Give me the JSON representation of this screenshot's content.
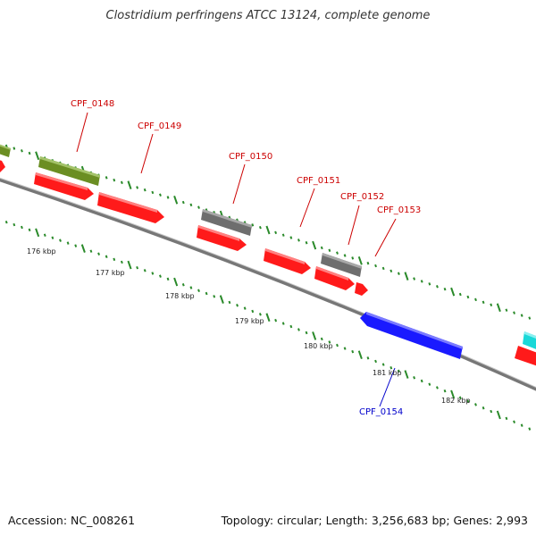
{
  "title": "Clostridium perfringens ATCC 13124, complete genome",
  "footer": {
    "accession": "Accession: NC_008261",
    "summary": "Topology: circular; Length: 3,256,683 bp; Genes: 2,993"
  },
  "colors": {
    "cds": "#ff1a1a",
    "gene_top_olive": "#6b8e23",
    "gene_top_gray": "#707070",
    "gene_bottom_blue": "#1a1aff",
    "gene_cyan": "#1ad8d8",
    "backbone": "#888888",
    "ticks": "#2a8a2a",
    "label_red": "#cc0000",
    "label_blue": "#0000cc"
  },
  "kbp_labels": [
    "176 kbp",
    "177 kbp",
    "178 kbp",
    "179 kbp",
    "180 kbp",
    "181 kbp",
    "182 kbp"
  ],
  "gene_labels": [
    {
      "text": "CPF_0148",
      "strand": "forward"
    },
    {
      "text": "CPF_0149",
      "strand": "forward"
    },
    {
      "text": "CPF_0150",
      "strand": "forward"
    },
    {
      "text": "CPF_0151",
      "strand": "forward"
    },
    {
      "text": "CPF_0152",
      "strand": "forward"
    },
    {
      "text": "CPF_0153",
      "strand": "forward"
    },
    {
      "text": "CPF_0154",
      "strand": "reverse"
    }
  ]
}
